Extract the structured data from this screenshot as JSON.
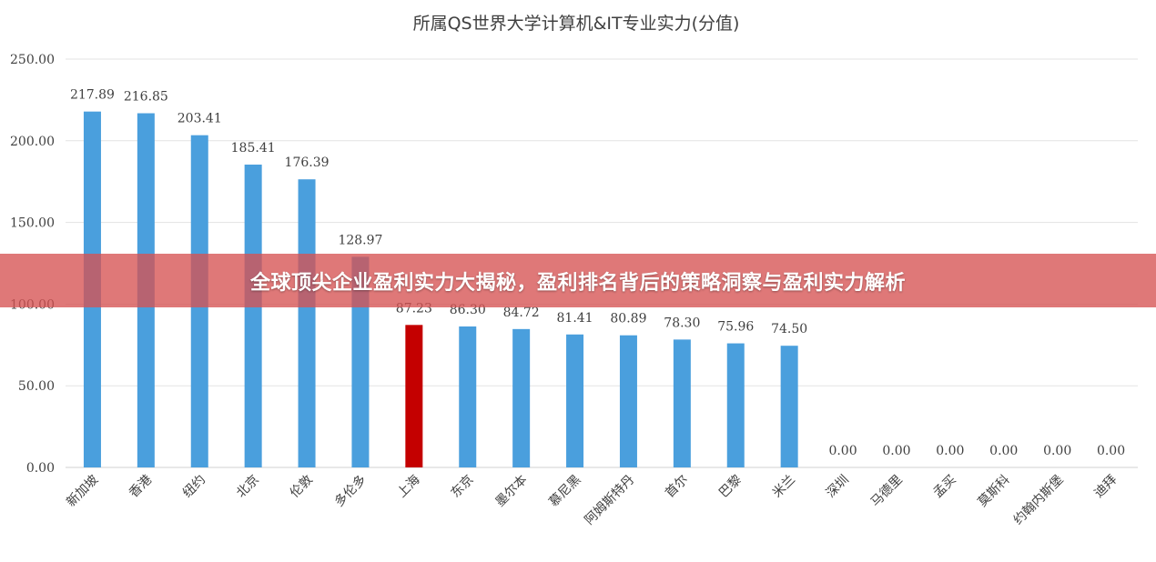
{
  "banner": {
    "text": "全球顶尖企业盈利实力大揭秘，盈利排名背后的策略洞察与盈利实力解析"
  },
  "chart_data": {
    "type": "bar",
    "title": "所属QS世界大学计算机&IT专业实力(分值)",
    "xlabel": "",
    "ylabel": "",
    "ylim": [
      0,
      250
    ],
    "yticks": [
      "0.00",
      "50.00",
      "100.00",
      "150.00",
      "200.00",
      "250.00"
    ],
    "grid": true,
    "legend": "none",
    "categories": [
      "新加坡",
      "香港",
      "纽约",
      "北京",
      "伦敦",
      "多伦多",
      "上海",
      "东京",
      "墨尔本",
      "慕尼黑",
      "阿姆斯特丹",
      "首尔",
      "巴黎",
      "米兰",
      "深圳",
      "马德里",
      "孟买",
      "莫斯科",
      "约翰内斯堡",
      "迪拜"
    ],
    "values": [
      217.89,
      216.85,
      203.41,
      185.41,
      176.39,
      128.97,
      87.23,
      86.3,
      84.72,
      81.41,
      80.89,
      78.3,
      75.96,
      74.5,
      0.0,
      0.0,
      0.0,
      0.0,
      0.0,
      0.0
    ],
    "value_labels": [
      "217.89",
      "216.85",
      "203.41",
      "185.41",
      "176.39",
      "128.97",
      "87.23",
      "86.30",
      "84.72",
      "81.41",
      "80.89",
      "78.30",
      "75.96",
      "74.50",
      "0.00",
      "0.00",
      "0.00",
      "0.00",
      "0.00",
      "0.00"
    ],
    "bar_color": "#4a9fdd",
    "highlight_index": 6,
    "highlight_color": "#c40000"
  }
}
